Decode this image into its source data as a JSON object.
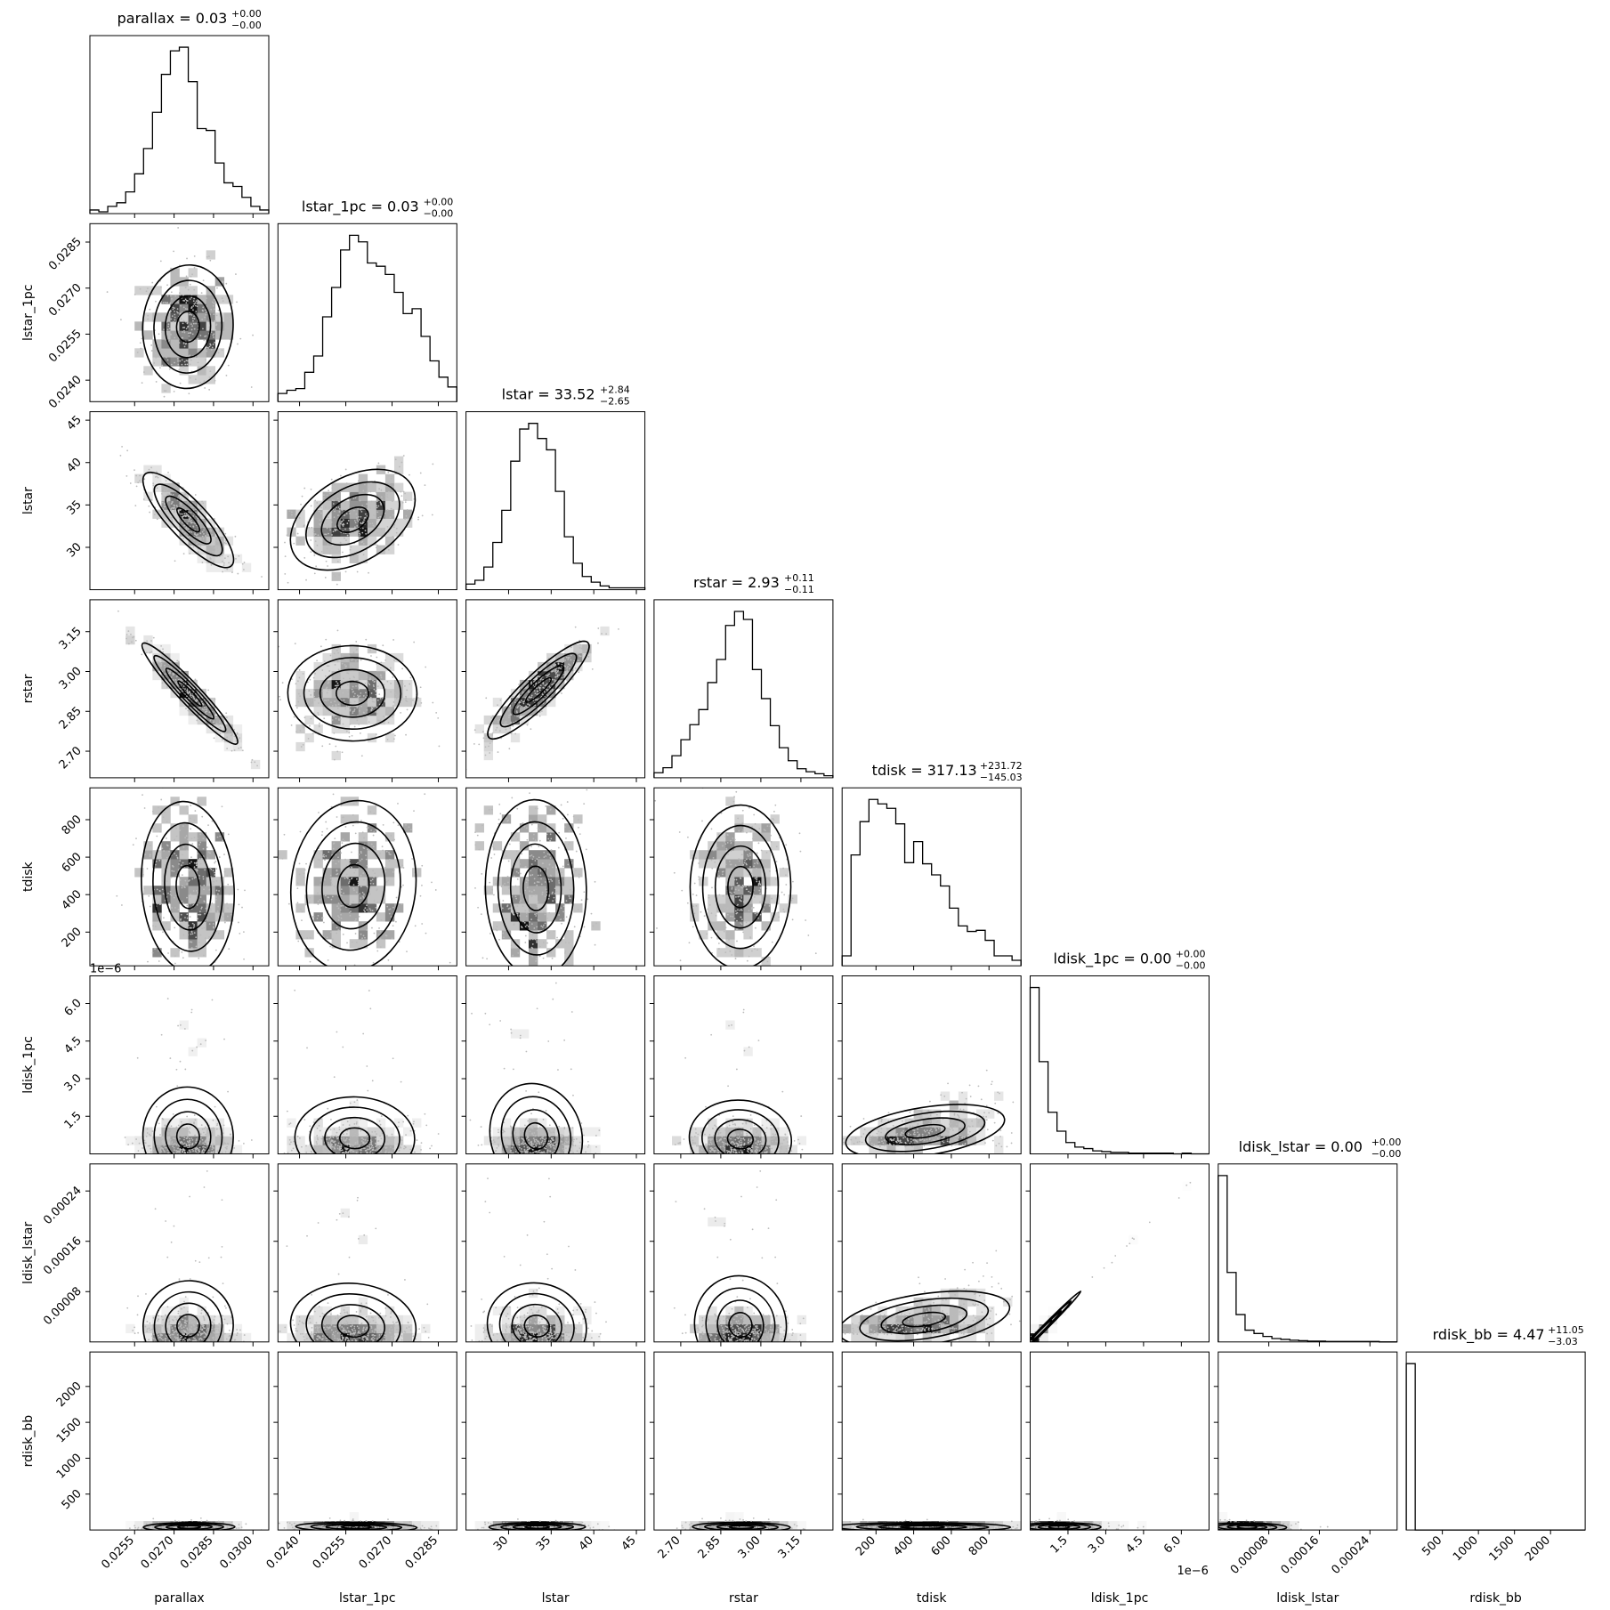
{
  "chart_data": {
    "type": "corner",
    "parameters": [
      "parallax",
      "lstar_1pc",
      "lstar",
      "rstar",
      "tdisk",
      "ldisk_1pc",
      "ldisk_lstar",
      "rdisk_bb"
    ],
    "titles": [
      {
        "name": "parallax",
        "value": "0.03",
        "plus": "+0.00",
        "minus": "−0.00"
      },
      {
        "name": "lstar_1pc",
        "value": "0.03",
        "plus": "+0.00",
        "minus": "−0.00"
      },
      {
        "name": "lstar",
        "value": "33.52",
        "plus": "+2.84",
        "minus": "−2.65"
      },
      {
        "name": "rstar",
        "value": "2.93",
        "plus": "+0.11",
        "minus": "−0.11"
      },
      {
        "name": "tdisk",
        "value": "317.13",
        "plus": "+231.72",
        "minus": "−145.03"
      },
      {
        "name": "ldisk_1pc",
        "value": "0.00",
        "plus": "+0.00",
        "minus": "−0.00"
      },
      {
        "name": "ldisk_lstar",
        "value": "0.00",
        "plus": "+0.00",
        "minus": "−0.00"
      },
      {
        "name": "rdisk_bb",
        "value": "4.47",
        "plus": "+11.05",
        "minus": "−3.03"
      }
    ],
    "ranges": [
      [
        0.0238,
        0.0306
      ],
      [
        0.0233,
        0.0291
      ],
      [
        25,
        46
      ],
      [
        2.6,
        3.27
      ],
      [
        20,
        970
      ],
      [
        0.0,
        7.1e-06
      ],
      [
        0.0,
        0.000283
      ],
      [
        0,
        2480
      ]
    ],
    "ticks": [
      [
        "0.0255",
        "0.0270",
        "0.0285",
        "0.0300"
      ],
      [
        "0.0240",
        "0.0255",
        "0.0270",
        "0.0285"
      ],
      [
        "30",
        "35",
        "40",
        "45"
      ],
      [
        "2.70",
        "2.85",
        "3.00",
        "3.15"
      ],
      [
        "200",
        "400",
        "600",
        "800"
      ],
      [
        "1.5",
        "3.0",
        "4.5",
        "6.0"
      ],
      [
        "0.00008",
        "0.00016",
        "0.00024"
      ],
      [
        "500",
        "1000",
        "1500",
        "2000"
      ]
    ],
    "tick_values": [
      [
        0.0255,
        0.027,
        0.0285,
        0.03
      ],
      [
        0.024,
        0.0255,
        0.027,
        0.0285
      ],
      [
        30,
        35,
        40,
        45
      ],
      [
        2.7,
        2.85,
        3.0,
        3.15
      ],
      [
        200,
        400,
        600,
        800
      ],
      [
        1.5e-06,
        3e-06,
        4.5e-06,
        6e-06
      ],
      [
        8e-05,
        0.00016,
        0.00024
      ],
      [
        500,
        1000,
        1500,
        2000
      ]
    ],
    "offset_texts": {
      "ldisk_1pc": "1e−6"
    },
    "histograms": [
      [
        2,
        1,
        4,
        6,
        12,
        22,
        36,
        56,
        77,
        90,
        92,
        73,
        47,
        46,
        28,
        17,
        15,
        9,
        4,
        2
      ],
      [
        5,
        7,
        8,
        18,
        28,
        52,
        70,
        93,
        102,
        98,
        85,
        83,
        78,
        67,
        54,
        57,
        40,
        25,
        15,
        9
      ],
      [
        3,
        5,
        12,
        25,
        42,
        68,
        85,
        88,
        80,
        74,
        52,
        28,
        14,
        7,
        4,
        2,
        1,
        1,
        1,
        1
      ],
      [
        5,
        10,
        22,
        38,
        53,
        68,
        95,
        118,
        152,
        166,
        158,
        108,
        79,
        52,
        30,
        17,
        9,
        6,
        4,
        2
      ],
      [
        9,
        100,
        130,
        150,
        146,
        142,
        128,
        93,
        112,
        92,
        82,
        72,
        52,
        36,
        31,
        32,
        23,
        9,
        9,
        5
      ],
      [
        220,
        122,
        55,
        30,
        15,
        9,
        7,
        4,
        3,
        2,
        2,
        1,
        1,
        1,
        1,
        1,
        0,
        1,
        0,
        0
      ],
      [
        395,
        165,
        65,
        28,
        20,
        13,
        8,
        6,
        4,
        3,
        2,
        2,
        1,
        1,
        1,
        1,
        1,
        1,
        0,
        0
      ],
      [
        990,
        0,
        0,
        0,
        0,
        0,
        0,
        0,
        0,
        0,
        0,
        0,
        0,
        0,
        0,
        0,
        0,
        0,
        0,
        0
      ]
    ],
    "correlation_hint": [
      [
        "lstar_1pc",
        "parallax",
        0.0
      ],
      [
        "lstar",
        "parallax",
        -0.85
      ],
      [
        "lstar",
        "lstar_1pc",
        0.45
      ],
      [
        "rstar",
        "parallax",
        -0.95
      ],
      [
        "rstar",
        "lstar_1pc",
        0.0
      ],
      [
        "rstar",
        "lstar",
        0.9
      ],
      [
        "ldisk_1pc",
        "tdisk",
        0.7
      ],
      [
        "ldisk_lstar",
        "tdisk",
        0.7
      ],
      [
        "ldisk_lstar",
        "ldisk_1pc",
        0.99
      ]
    ]
  }
}
